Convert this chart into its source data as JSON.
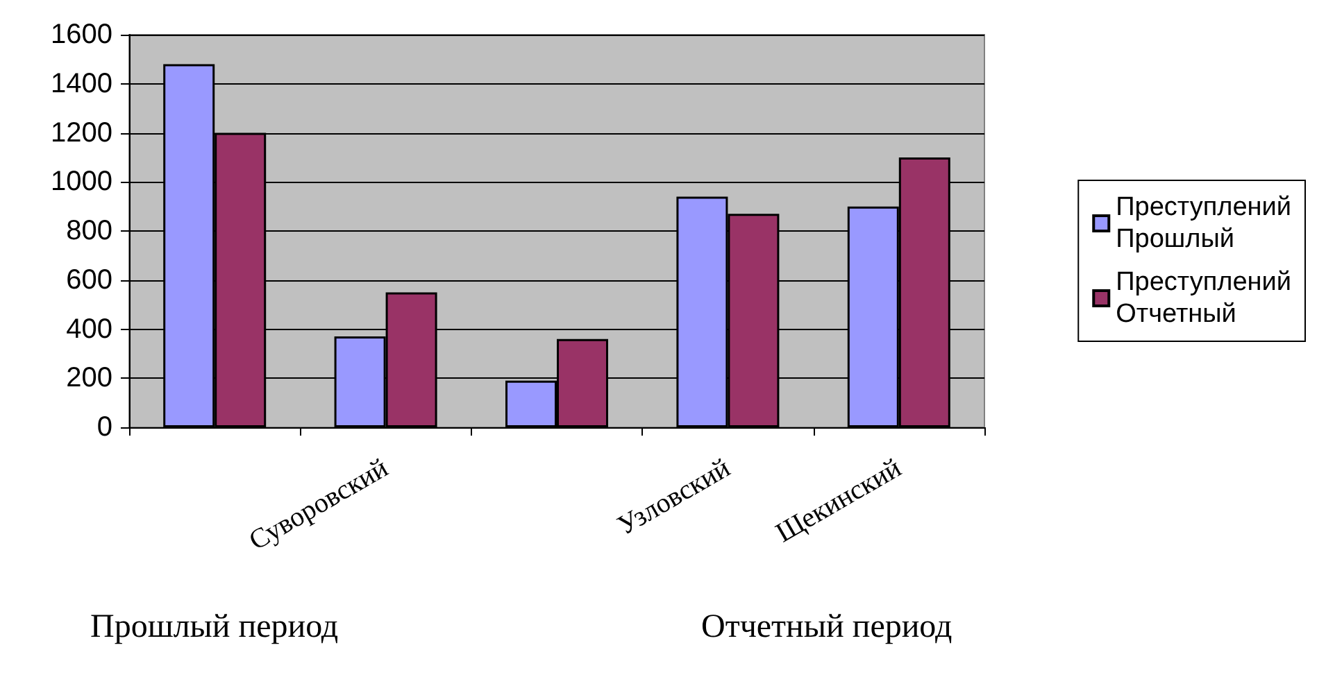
{
  "chart_data": {
    "type": "bar",
    "categories": [
      null,
      "Суворовский",
      null,
      "Узловский",
      "Щекинский"
    ],
    "series": [
      {
        "name": "Преступлений Прошлый",
        "color": "#9999ff",
        "values": [
          1480,
          370,
          190,
          940,
          900
        ]
      },
      {
        "name": "Преступлений Отчетный",
        "color": "#993366",
        "values": [
          1200,
          550,
          360,
          870,
          1100
        ]
      }
    ],
    "ylim": [
      0,
      1600
    ],
    "yticks": [
      0,
      200,
      400,
      600,
      800,
      1000,
      1200,
      1400,
      1600
    ],
    "grid": "y",
    "legend": "right",
    "annotations": [
      "Прошлый период",
      "Отчетный период"
    ]
  }
}
